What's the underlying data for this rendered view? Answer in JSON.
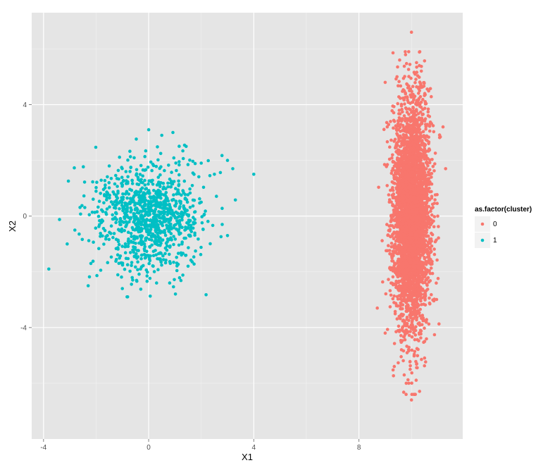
{
  "chart_data": {
    "type": "scatter",
    "title": "",
    "xlabel": "X1",
    "ylabel": "X2",
    "xlim": [
      -4.45,
      11.95
    ],
    "ylim": [
      -8.0,
      7.3
    ],
    "x_ticks": [
      {
        "value": -4,
        "label": "-4"
      },
      {
        "value": 0,
        "label": "0"
      },
      {
        "value": 4,
        "label": "4"
      },
      {
        "value": 8,
        "label": "8"
      }
    ],
    "y_ticks": [
      {
        "value": -4,
        "label": "-4"
      },
      {
        "value": 0,
        "label": "0"
      },
      {
        "value": 4,
        "label": "4"
      }
    ],
    "grid": true,
    "legend": {
      "title": "as.factor(cluster)",
      "position": "right",
      "entries": [
        {
          "label": "0",
          "color": "#F8766D"
        },
        {
          "label": "1",
          "color": "#00BFC4"
        }
      ]
    },
    "series": [
      {
        "name": "0",
        "color": "#F8766D",
        "distribution": {
          "x_center": 10,
          "y_center": 0,
          "x_sd": 0.35,
          "y_sd": 2.0,
          "n": 4000
        },
        "points": [
          [
            10.0,
            6.6
          ],
          [
            9.55,
            5.6
          ],
          [
            10.3,
            5.4
          ],
          [
            9.0,
            4.8
          ],
          [
            9.45,
            5.0
          ],
          [
            11.2,
            3.2
          ],
          [
            11.3,
            1.7
          ],
          [
            11.0,
            0.0
          ],
          [
            8.7,
            -3.3
          ],
          [
            9.0,
            -4.2
          ],
          [
            9.8,
            -6.0
          ],
          [
            10.0,
            -6.6
          ],
          [
            10.2,
            -5.3
          ],
          [
            10.5,
            -4.5
          ],
          [
            9.95,
            -5.5
          ]
        ]
      },
      {
        "name": "1",
        "color": "#00BFC4",
        "distribution": {
          "x_center": 0,
          "y_center": 0,
          "x_sd": 1.0,
          "y_sd": 1.0,
          "n": 1000
        },
        "points": [
          [
            -3.8,
            -1.9
          ],
          [
            -3.1,
            -1.0
          ],
          [
            -2.3,
            -2.5
          ],
          [
            -2.2,
            -1.7
          ],
          [
            -1.5,
            1.8
          ],
          [
            0.0,
            3.1
          ],
          [
            0.5,
            2.9
          ],
          [
            2.0,
            1.9
          ],
          [
            2.5,
            1.5
          ],
          [
            3.0,
            2.0
          ],
          [
            3.2,
            1.7
          ],
          [
            4.0,
            1.5
          ],
          [
            3.0,
            -0.7
          ],
          [
            2.8,
            -0.3
          ],
          [
            1.5,
            -1.8
          ],
          [
            -0.8,
            -2.9
          ],
          [
            0.3,
            -2.4
          ],
          [
            0.8,
            -2.4
          ],
          [
            2.0,
            0.5
          ],
          [
            -1.0,
            -2.6
          ]
        ]
      }
    ]
  }
}
